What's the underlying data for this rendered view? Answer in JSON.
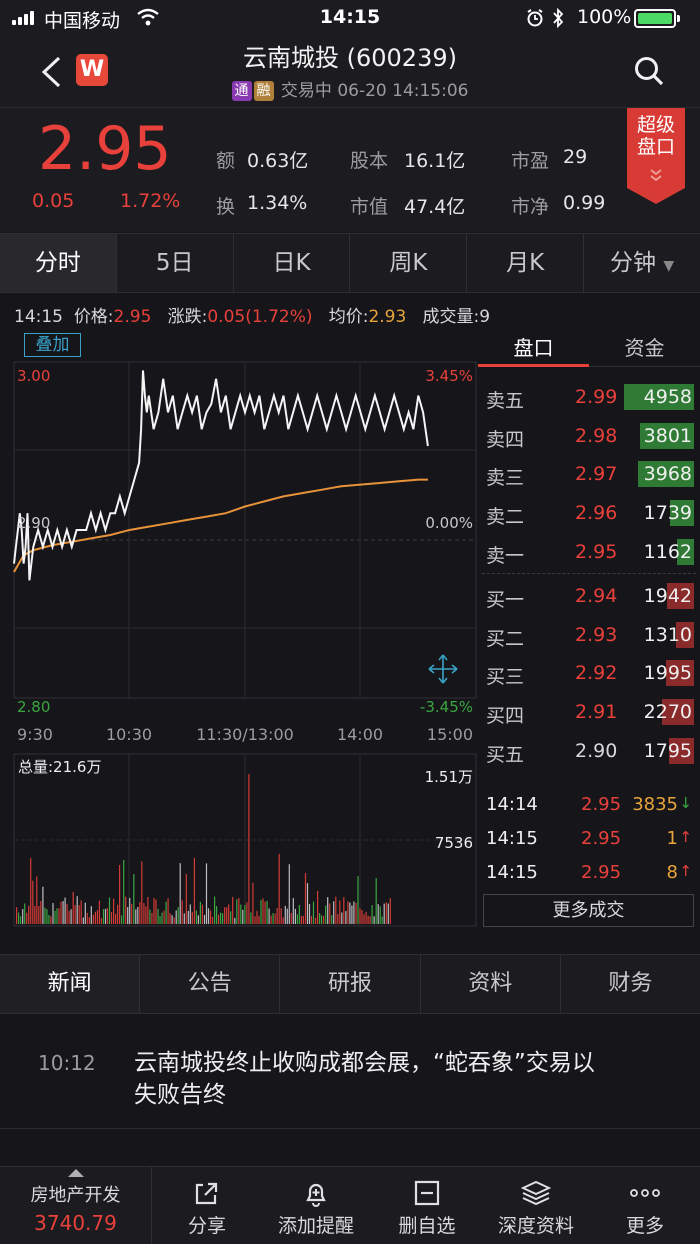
{
  "status_bar": {
    "carrier": "中国移动",
    "time": "14:15",
    "battery": "100%"
  },
  "header": {
    "title": "云南城投 (600239)",
    "tag_tong": "通",
    "tag_rong": "融",
    "subtitle": "交易中 06-20 14:15:06",
    "logo_letter": "W"
  },
  "quote": {
    "price": "2.95",
    "change": "0.05",
    "change_pct": "1.72%",
    "stats": [
      {
        "k": "额",
        "v": "0.63亿"
      },
      {
        "k": "股本",
        "v": "16.1亿"
      },
      {
        "k": "市盈",
        "v": "29"
      },
      {
        "k": "换",
        "v": "1.34%"
      },
      {
        "k": "市值",
        "v": "47.4亿"
      },
      {
        "k": "市净",
        "v": "0.99"
      }
    ],
    "super_panel": "超级盘口"
  },
  "chart_tabs": [
    "分时",
    "5日",
    "日K",
    "周K",
    "月K",
    "分钟"
  ],
  "info_row": {
    "time": "14:15",
    "price_label": "价格:",
    "price": "2.95",
    "change_label": "涨跌:",
    "change": "0.05(1.72%)",
    "avg_label": "均价:",
    "avg": "2.93",
    "vol_label": "成交量:",
    "vol": "9"
  },
  "overlay_button": "叠加",
  "chart_data": {
    "type": "line",
    "price_axis": {
      "top": "3.00",
      "mid": "2.90",
      "bottom": "2.80",
      "pct_top": "3.45%",
      "pct_mid": "0.00%",
      "pct_bottom": "-3.45%"
    },
    "time_ticks": [
      "9:30",
      "10:30",
      "11:30/13:00",
      "14:00",
      "15:00"
    ],
    "volume_label": "总量:21.6万",
    "volume_ticks": [
      "1.51万",
      "7536"
    ],
    "series": [
      {
        "kind": "price",
        "x": [
          0,
          2,
          4,
          6,
          8,
          10,
          12,
          14,
          16,
          20,
          25,
          30,
          35,
          40,
          45,
          50,
          55,
          60,
          65,
          70,
          75,
          80,
          85,
          90,
          95,
          100,
          105,
          110,
          115,
          120,
          125,
          130,
          132,
          134,
          136,
          138,
          140,
          145,
          150,
          155,
          160,
          165,
          170,
          175,
          180,
          185,
          190,
          195,
          200,
          205,
          210,
          215,
          220,
          225,
          230,
          235,
          240,
          245,
          250,
          255,
          260,
          265,
          270,
          275,
          280,
          285,
          290,
          295,
          300,
          305,
          310,
          315,
          320,
          325,
          330,
          335,
          340,
          345,
          350,
          355,
          360,
          365,
          370,
          375,
          380,
          385,
          390,
          395,
          400,
          405,
          410,
          415,
          420,
          425,
          430
        ],
        "y": [
          2.88,
          2.89,
          2.9,
          2.91,
          2.9,
          2.88,
          2.89,
          2.91,
          2.87,
          2.89,
          2.9,
          2.89,
          2.9,
          2.89,
          2.9,
          2.89,
          2.9,
          2.89,
          2.9,
          2.9,
          2.9,
          2.91,
          2.9,
          2.91,
          2.9,
          2.91,
          2.91,
          2.92,
          2.91,
          2.92,
          2.93,
          2.94,
          2.96,
          2.995,
          2.98,
          2.97,
          2.98,
          2.96,
          2.97,
          2.99,
          2.97,
          2.98,
          2.96,
          2.97,
          2.98,
          2.97,
          2.98,
          2.96,
          2.97,
          2.975,
          2.99,
          2.97,
          2.98,
          2.96,
          2.97,
          2.98,
          2.97,
          2.98,
          2.97,
          2.98,
          2.96,
          2.97,
          2.98,
          2.97,
          2.98,
          2.96,
          2.97,
          2.98,
          2.97,
          2.96,
          2.97,
          2.98,
          2.97,
          2.96,
          2.97,
          2.98,
          2.97,
          2.96,
          2.97,
          2.98,
          2.97,
          2.96,
          2.97,
          2.98,
          2.97,
          2.96,
          2.97,
          2.98,
          2.97,
          2.96,
          2.97,
          2.96,
          2.98,
          2.97,
          2.95
        ]
      },
      {
        "kind": "average",
        "x": [
          0,
          10,
          20,
          40,
          60,
          80,
          100,
          120,
          140,
          160,
          180,
          200,
          220,
          240,
          260,
          280,
          300,
          320,
          340,
          360,
          380,
          400,
          420,
          430
        ],
        "y": [
          2.875,
          2.885,
          2.888,
          2.891,
          2.893,
          2.895,
          2.897,
          2.9,
          2.902,
          2.904,
          2.906,
          2.908,
          2.91,
          2.914,
          2.917,
          2.92,
          2.922,
          2.924,
          2.926,
          2.927,
          2.928,
          2.929,
          2.93,
          2.93
        ]
      }
    ],
    "ylim": [
      2.8,
      3.0
    ],
    "xlim": [
      0,
      430
    ]
  },
  "order_book": {
    "tabs": [
      "盘口",
      "资金"
    ],
    "asks": [
      {
        "label": "卖五",
        "price": "2.99",
        "vol": "4958",
        "ratio": 1.0
      },
      {
        "label": "卖四",
        "price": "2.98",
        "vol": "3801",
        "ratio": 0.77
      },
      {
        "label": "卖三",
        "price": "2.97",
        "vol": "3968",
        "ratio": 0.8
      },
      {
        "label": "卖二",
        "price": "2.96",
        "vol": "1739",
        "ratio": 0.35
      },
      {
        "label": "卖一",
        "price": "2.95",
        "vol": "1162",
        "ratio": 0.24
      }
    ],
    "bids": [
      {
        "label": "买一",
        "price": "2.94",
        "vol": "1942",
        "ratio": 0.39
      },
      {
        "label": "买二",
        "price": "2.93",
        "vol": "1310",
        "ratio": 0.26
      },
      {
        "label": "买三",
        "price": "2.92",
        "vol": "1995",
        "ratio": 0.4
      },
      {
        "label": "买四",
        "price": "2.91",
        "vol": "2270",
        "ratio": 0.46
      },
      {
        "label": "买五",
        "price": "2.90",
        "vol": "1795",
        "ratio": 0.36
      }
    ],
    "trades": [
      {
        "time": "14:14",
        "price": "2.95",
        "vol": "3835",
        "dir": "↓"
      },
      {
        "time": "14:15",
        "price": "2.95",
        "vol": "1",
        "dir": "↑"
      },
      {
        "time": "14:15",
        "price": "2.95",
        "vol": "8",
        "dir": "↑"
      }
    ],
    "more_button": "更多成交"
  },
  "news_tabs": [
    "新闻",
    "公告",
    "研报",
    "资料",
    "财务"
  ],
  "news": [
    {
      "time": "10:12",
      "title_line1": "云南城投终止收购成都会展，“蛇吞象”交易以",
      "title_line2": "失败告终"
    }
  ],
  "toolbar": {
    "sector_name": "房地产开发",
    "sector_value": "3740.79",
    "items": [
      "分享",
      "添加提醒",
      "删自选",
      "深度资料",
      "更多"
    ]
  },
  "colors": {
    "up": "#e8403a",
    "down": "#3aa641",
    "avg_line": "#e8923a",
    "bg": "#16161a"
  }
}
